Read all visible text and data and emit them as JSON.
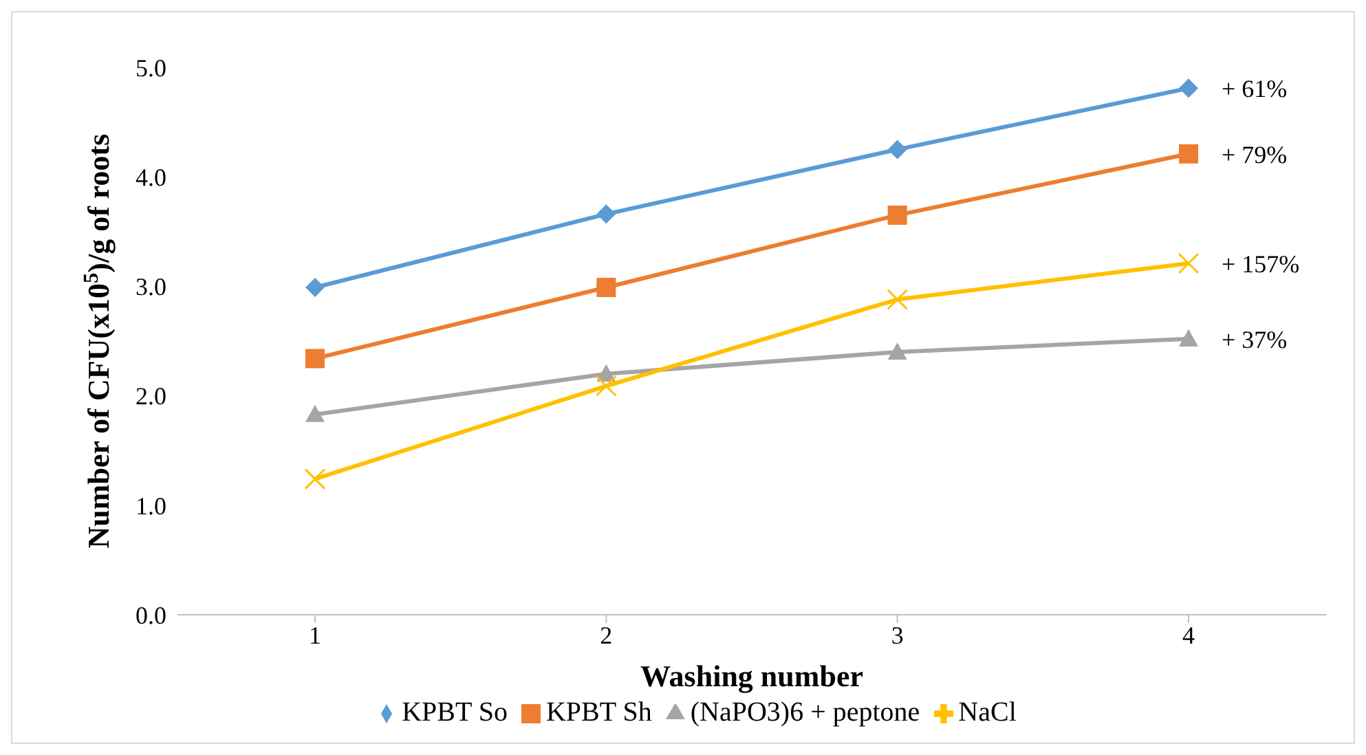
{
  "chart_data": {
    "type": "line",
    "xlabel": "Washing number",
    "ylabel": "Number of CFU(x10$^{5}$)/g of roots",
    "categories": [
      "1",
      "2",
      "3",
      "4"
    ],
    "series": [
      {
        "name": "KPBT So",
        "color": "#5b9bd5",
        "marker": "diamond",
        "values": [
          2.99,
          3.66,
          4.25,
          4.81
        ]
      },
      {
        "name": "KPBT Sh",
        "color": "#ed7d31",
        "marker": "square",
        "values": [
          2.34,
          2.99,
          3.65,
          4.21
        ]
      },
      {
        "name": "(NaPO3)6 + peptone",
        "color": "#a5a5a5",
        "marker": "triangle",
        "values": [
          1.83,
          2.2,
          2.4,
          2.52
        ]
      },
      {
        "name": "NaCl",
        "color": "#ffc000",
        "marker": "cross",
        "values": [
          1.24,
          2.09,
          2.88,
          3.21
        ]
      }
    ],
    "ylim": [
      0,
      5
    ],
    "yticks": [
      {
        "value": 0,
        "label": "0.0"
      },
      {
        "value": 1,
        "label": "1.0"
      },
      {
        "value": 2,
        "label": "2.0"
      },
      {
        "value": 3,
        "label": "3.0"
      },
      {
        "value": 4,
        "label": "4.0"
      },
      {
        "value": 5,
        "label": "5.0"
      }
    ],
    "annotations": [
      {
        "text": "+ 61%",
        "x": "4",
        "y": 4.81
      },
      {
        "text": "+ 79%",
        "x": "4",
        "y": 4.21
      },
      {
        "text": "+ 157%",
        "x": "4",
        "y": 3.21
      },
      {
        "text": "+ 37%",
        "x": "4",
        "y": 2.52
      }
    ],
    "grid": false,
    "legend": "bottom",
    "line_style": "solid"
  }
}
